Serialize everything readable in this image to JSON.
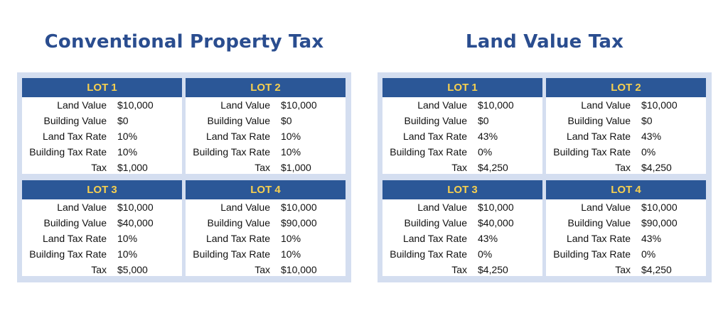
{
  "panels": [
    {
      "title": "Conventional Property Tax",
      "lots": [
        {
          "name": "LOT 1",
          "rows": [
            {
              "label": "Land Value",
              "value": "$10,000"
            },
            {
              "label": "Building Value",
              "value": "$0"
            },
            {
              "label": "Land Tax Rate",
              "value": "10%"
            },
            {
              "label": "Building Tax Rate",
              "value": "10%"
            },
            {
              "label": "Tax",
              "value": "$1,000"
            }
          ]
        },
        {
          "name": "LOT 2",
          "rows": [
            {
              "label": "Land Value",
              "value": "$10,000"
            },
            {
              "label": "Building Value",
              "value": "$0"
            },
            {
              "label": "Land Tax Rate",
              "value": "10%"
            },
            {
              "label": "Building Tax Rate",
              "value": "10%"
            },
            {
              "label": "Tax",
              "value": "$1,000"
            }
          ]
        },
        {
          "name": "LOT 3",
          "rows": [
            {
              "label": "Land Value",
              "value": "$10,000"
            },
            {
              "label": "Building Value",
              "value": "$40,000"
            },
            {
              "label": "Land Tax Rate",
              "value": "10%"
            },
            {
              "label": "Building Tax Rate",
              "value": "10%"
            },
            {
              "label": "Tax",
              "value": "$5,000"
            }
          ]
        },
        {
          "name": "LOT 4",
          "rows": [
            {
              "label": "Land Value",
              "value": "$10,000"
            },
            {
              "label": "Building Value",
              "value": "$90,000"
            },
            {
              "label": "Land Tax Rate",
              "value": "10%"
            },
            {
              "label": "Building Tax Rate",
              "value": "10%"
            },
            {
              "label": "Tax",
              "value": "$10,000"
            }
          ]
        }
      ]
    },
    {
      "title": "Land Value Tax",
      "lots": [
        {
          "name": "LOT 1",
          "rows": [
            {
              "label": "Land Value",
              "value": "$10,000"
            },
            {
              "label": "Building Value",
              "value": "$0"
            },
            {
              "label": "Land Tax Rate",
              "value": "43%"
            },
            {
              "label": "Building Tax Rate",
              "value": "0%"
            },
            {
              "label": "Tax",
              "value": "$4,250"
            }
          ]
        },
        {
          "name": "LOT 2",
          "rows": [
            {
              "label": "Land Value",
              "value": "$10,000"
            },
            {
              "label": "Building Value",
              "value": "$0"
            },
            {
              "label": "Land Tax Rate",
              "value": "43%"
            },
            {
              "label": "Building Tax Rate",
              "value": "0%"
            },
            {
              "label": "Tax",
              "value": "$4,250"
            }
          ]
        },
        {
          "name": "LOT 3",
          "rows": [
            {
              "label": "Land Value",
              "value": "$10,000"
            },
            {
              "label": "Building Value",
              "value": "$40,000"
            },
            {
              "label": "Land Tax Rate",
              "value": "43%"
            },
            {
              "label": "Building Tax Rate",
              "value": "0%"
            },
            {
              "label": "Tax",
              "value": "$4,250"
            }
          ]
        },
        {
          "name": "LOT 4",
          "rows": [
            {
              "label": "Land Value",
              "value": "$10,000"
            },
            {
              "label": "Building Value",
              "value": "$90,000"
            },
            {
              "label": "Land Tax Rate",
              "value": "43%"
            },
            {
              "label": "Building Tax Rate",
              "value": "0%"
            },
            {
              "label": "Tax",
              "value": "$4,250"
            }
          ]
        }
      ]
    }
  ]
}
